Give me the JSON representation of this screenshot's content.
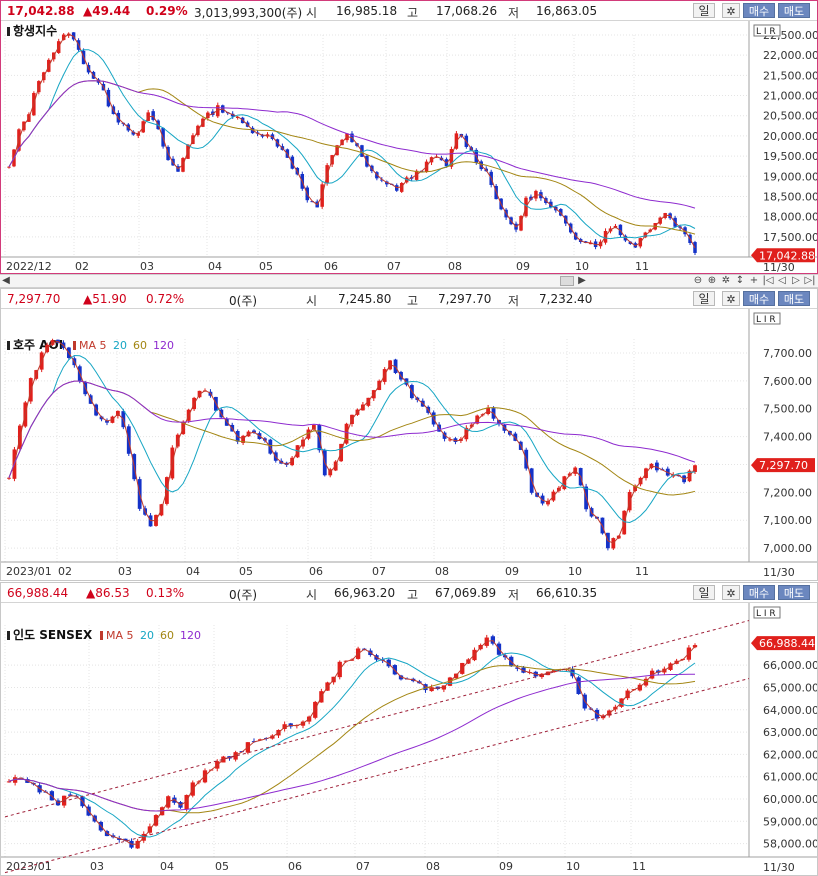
{
  "panels": [
    {
      "id": "hangseng",
      "header": {
        "price": "17,042.88",
        "change": "▲49.44",
        "pct": "0.29%",
        "volume": "3,013,993,300(주)",
        "open_label": "시",
        "open": "16,985.18",
        "high_label": "고",
        "high": "17,068.26",
        "low_label": "저",
        "low": "16,863.05",
        "period": "일",
        "buy": "매수",
        "sell": "매도"
      },
      "title": "항생지수",
      "ma_legend": [],
      "lin_label": "L",
      "scale": {
        "min": 17000,
        "max": 22500
      },
      "y_ticks": [
        "22,500.00",
        "22,000.00",
        "21,500.00",
        "21,000.00",
        "20,500.00",
        "20,000.00",
        "19,500.00",
        "19,000.00",
        "18,500.00",
        "18,000.00",
        "17,500.00"
      ],
      "last_tag": "17,042.88",
      "x_labels": [
        "2022/12",
        "02",
        "03",
        "04",
        "05",
        "06",
        "07",
        "08",
        "09",
        "10",
        "11"
      ],
      "x_right": "11/30",
      "chart_data": {
        "type": "candlestick",
        "series": [
          {
            "name": "",
            "values": [
              19200,
              20100,
              20600,
              21400,
              21900,
              22300,
              22600,
              22100,
              21600,
              21300,
              20800,
              20400,
              20200,
              20000,
              20600,
              20100,
              19400,
              19100,
              19800,
              20300,
              20500,
              20700,
              20600,
              20400,
              20200,
              20100,
              20000,
              19800,
              19500,
              19000,
              18400,
              18200,
              19300,
              19800,
              20000,
              19700,
              19200,
              19000,
              18800,
              18700,
              18900,
              19100,
              19300,
              19500,
              19200,
              20100,
              19800,
              19400,
              19100,
              18500,
              17900,
              17700,
              18400,
              18600,
              18300,
              18100,
              17800,
              17500,
              17400,
              17300,
              17600,
              17800,
              17400,
              17300,
              17600,
              17900,
              18100,
              17800,
              17600,
              17100
            ]
          }
        ]
      }
    },
    {
      "id": "aoi",
      "header": {
        "price": "7,297.70",
        "change": "▲51.90",
        "pct": "0.72%",
        "volume": "0(주)",
        "open_label": "시",
        "open": "7,245.80",
        "high_label": "고",
        "high": "7,297.70",
        "low_label": "저",
        "low": "7,232.40",
        "period": "일",
        "buy": "매수",
        "sell": "매도"
      },
      "title": "호주 AOI",
      "ma_legend": [
        {
          "label": "MA 5",
          "color": "#c0392b"
        },
        {
          "label": "20",
          "color": "#17a6c4"
        },
        {
          "label": "60",
          "color": "#a38613"
        },
        {
          "label": "120",
          "color": "#8e2bcf"
        }
      ],
      "lin_label": "L",
      "scale": {
        "min": 6950,
        "max": 7750
      },
      "y_ticks": [
        "7,700.00",
        "7,600.00",
        "7,500.00",
        "7,400.00",
        "7,300.00",
        "7,200.00",
        "7,100.00",
        "7,000.00"
      ],
      "last_tag": "7,297.70",
      "x_labels": [
        "2023/01",
        "02",
        "03",
        "04",
        "05",
        "06",
        "07",
        "08",
        "09",
        "10",
        "11"
      ],
      "x_right": "11/30",
      "chart_data": {
        "type": "candlestick",
        "series": [
          {
            "name": "",
            "values": [
              7250,
              7450,
              7600,
              7700,
              7750,
              7720,
              7650,
              7550,
              7480,
              7450,
              7500,
              7350,
              7150,
              7080,
              7150,
              7350,
              7450,
              7550,
              7570,
              7500,
              7450,
              7380,
              7420,
              7400,
              7350,
              7300,
              7320,
              7400,
              7450,
              7250,
              7300,
              7450,
              7500,
              7550,
              7600,
              7680,
              7600,
              7550,
              7500,
              7450,
              7400,
              7380,
              7420,
              7480,
              7500,
              7450,
              7400,
              7350,
              7200,
              7150,
              7200,
              7250,
              7300,
              7150,
              7100,
              7000,
              7050,
              7200,
              7250,
              7300,
              7280,
              7260,
              7240,
              7297
            ]
          }
        ]
      }
    },
    {
      "id": "sensex",
      "header": {
        "price": "66,988.44",
        "change": "▲86.53",
        "pct": "0.13%",
        "volume": "0(주)",
        "open_label": "시",
        "open": "66,963.20",
        "high_label": "고",
        "high": "67,069.89",
        "low_label": "저",
        "low": "66,610.35",
        "period": "일",
        "buy": "매수",
        "sell": "매도"
      },
      "title": "인도 SENSEX",
      "ma_legend": [
        {
          "label": "MA 5",
          "color": "#c0392b"
        },
        {
          "label": "20",
          "color": "#17a6c4"
        },
        {
          "label": "60",
          "color": "#a38613"
        },
        {
          "label": "120",
          "color": "#8e2bcf"
        }
      ],
      "lin_label": "L",
      "scale": {
        "min": 57400,
        "max": 67800
      },
      "y_ticks": [
        "66,000.00",
        "65,000.00",
        "64,000.00",
        "63,000.00",
        "62,000.00",
        "61,000.00",
        "60,000.00",
        "59,000.00",
        "58,000.00"
      ],
      "last_tag": "66,988.44",
      "x_labels": [
        "2023/01",
        "03",
        "04",
        "05",
        "06",
        "07",
        "08",
        "09",
        "10",
        "11"
      ],
      "x_right": "11/30",
      "chart_data": {
        "type": "candlestick",
        "series": [
          {
            "name": "",
            "values": [
              60800,
              61000,
              60600,
              60200,
              59800,
              60300,
              59700,
              59000,
              58400,
              58200,
              57900,
              58300,
              59400,
              60000,
              59700,
              60600,
              61200,
              61700,
              61900,
              62200,
              62700,
              62800,
              63100,
              63300,
              63500,
              64200,
              65200,
              66000,
              66400,
              66800,
              66300,
              65800,
              65400,
              65200,
              65000,
              64900,
              65400,
              66000,
              66800,
              67300,
              66500,
              66000,
              65800,
              65600,
              65700,
              65900,
              65500,
              64200,
              63700,
              63900,
              64600,
              65000,
              65500,
              65700,
              66000,
              66400,
              66900
            ]
          }
        ]
      }
    }
  ],
  "scroll_controls": [
    "⊖",
    "⊕",
    "✲",
    "↕",
    "+",
    "|◁",
    "◁",
    "▷",
    "▷|"
  ]
}
